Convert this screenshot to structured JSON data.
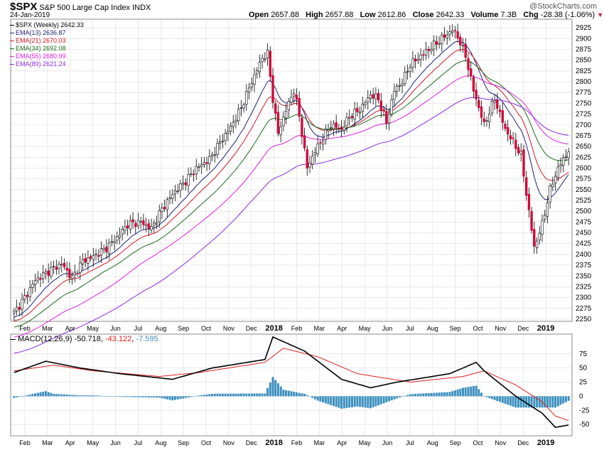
{
  "header": {
    "symbol": "$SPX",
    "name": "S&P 500 Large Cap Index",
    "exchange": "INDX",
    "date": "24-Jan-2019",
    "watermark": "@StockCharts.com",
    "open_label": "Open",
    "open": "2657.88",
    "high_label": "High",
    "high": "2657.88",
    "low_label": "Low",
    "low": "2612.86",
    "close_label": "Close",
    "close": "2642.33",
    "volume_label": "Volume",
    "volume": "7.3B",
    "chg_label": "Chg",
    "chg": "-28.38 (-1.06%)",
    "chg_arrow": "▼"
  },
  "overlay_legend": [
    {
      "label": "$SPX (Weekly) 2642.33",
      "color": "#000000"
    },
    {
      "label": "EMA(13) 2636.87",
      "color": "#1a237e"
    },
    {
      "label": "EMA(21) 2670.03",
      "color": "#d11a2a"
    },
    {
      "label": "EMA(34) 2692.08",
      "color": "#1e6b1e"
    },
    {
      "label": "EMA(55) 2680.99",
      "color": "#e020e0"
    },
    {
      "label": "EMA(89) 2621.24",
      "color": "#8a2be2"
    }
  ],
  "macd_legend": {
    "label": "MACD(12,26,9)",
    "macd": "-50.718",
    "signal": "-43.122",
    "hist": "-7.595"
  },
  "colors": {
    "up": "#ffffff",
    "down": "#d1093b",
    "grid": "#dcdcdc",
    "macd": "#000000",
    "signal": "#e02020",
    "hist": "#3d8fbf"
  },
  "x_axis_labels": [
    "Feb",
    "Mar",
    "Apr",
    "May",
    "Jun",
    "Jul",
    "Aug",
    "Sep",
    "Oct",
    "Nov",
    "Dec",
    "2018",
    "Feb",
    "Mar",
    "Apr",
    "May",
    "Jun",
    "Jul",
    "Aug",
    "Sep",
    "Oct",
    "Nov",
    "Dec",
    "2019"
  ],
  "chart_data": {
    "type": "candlestick",
    "title": "$SPX S&P 500 Large Cap Index INDX (Weekly)",
    "price_ticks": [
      2250,
      2275,
      2300,
      2325,
      2350,
      2375,
      2400,
      2425,
      2450,
      2475,
      2500,
      2525,
      2550,
      2575,
      2600,
      2625,
      2650,
      2675,
      2700,
      2725,
      2750,
      2775,
      2800,
      2825,
      2850,
      2875,
      2900,
      2925
    ],
    "ylim": [
      2245,
      2945
    ],
    "macd_ticks": [
      75,
      50,
      25,
      0,
      -25,
      -50
    ],
    "macd_ylim": [
      -70,
      110
    ],
    "anchors": [
      [
        0,
        2265
      ],
      [
        4,
        2300
      ],
      [
        8,
        2340
      ],
      [
        14,
        2365
      ],
      [
        18,
        2378
      ],
      [
        22,
        2345
      ],
      [
        26,
        2385
      ],
      [
        30,
        2395
      ],
      [
        35,
        2415
      ],
      [
        39,
        2440
      ],
      [
        43,
        2470
      ],
      [
        48,
        2475
      ],
      [
        52,
        2460
      ],
      [
        56,
        2505
      ],
      [
        60,
        2540
      ],
      [
        65,
        2570
      ],
      [
        69,
        2600
      ],
      [
        74,
        2620
      ],
      [
        78,
        2660
      ],
      [
        82,
        2695
      ],
      [
        86,
        2740
      ],
      [
        90,
        2800
      ],
      [
        94,
        2855
      ],
      [
        96,
        2865
      ],
      [
        98,
        2760
      ],
      [
        100,
        2680
      ],
      [
        103,
        2735
      ],
      [
        106,
        2780
      ],
      [
        108,
        2720
      ],
      [
        111,
        2600
      ],
      [
        114,
        2640
      ],
      [
        117,
        2670
      ],
      [
        120,
        2700
      ],
      [
        124,
        2690
      ],
      [
        127,
        2720
      ],
      [
        131,
        2735
      ],
      [
        135,
        2770
      ],
      [
        138,
        2760
      ],
      [
        141,
        2705
      ],
      [
        144,
        2780
      ],
      [
        147,
        2800
      ],
      [
        150,
        2840
      ],
      [
        154,
        2860
      ],
      [
        158,
        2880
      ],
      [
        162,
        2900
      ],
      [
        166,
        2920
      ],
      [
        168,
        2905
      ],
      [
        171,
        2860
      ],
      [
        174,
        2780
      ],
      [
        178,
        2700
      ],
      [
        182,
        2760
      ],
      [
        186,
        2690
      ],
      [
        190,
        2650
      ],
      [
        192,
        2630
      ],
      [
        194,
        2540
      ],
      [
        197,
        2416
      ],
      [
        200,
        2470
      ],
      [
        203,
        2550
      ],
      [
        206,
        2600
      ],
      [
        210,
        2640
      ]
    ],
    "macd_anchors": [
      [
        0,
        42
      ],
      [
        12,
        62
      ],
      [
        25,
        50
      ],
      [
        40,
        40
      ],
      [
        60,
        30
      ],
      [
        75,
        50
      ],
      [
        95,
        65
      ],
      [
        98,
        105
      ],
      [
        110,
        80
      ],
      [
        124,
        30
      ],
      [
        135,
        15
      ],
      [
        145,
        25
      ],
      [
        165,
        40
      ],
      [
        175,
        60
      ],
      [
        178,
        45
      ],
      [
        190,
        0
      ],
      [
        200,
        -30
      ],
      [
        205,
        -55
      ],
      [
        210,
        -51
      ]
    ],
    "signal_anchors": [
      [
        0,
        45
      ],
      [
        15,
        55
      ],
      [
        30,
        45
      ],
      [
        55,
        35
      ],
      [
        70,
        42
      ],
      [
        95,
        60
      ],
      [
        102,
        85
      ],
      [
        115,
        70
      ],
      [
        130,
        40
      ],
      [
        150,
        25
      ],
      [
        170,
        35
      ],
      [
        178,
        45
      ],
      [
        190,
        20
      ],
      [
        200,
        -10
      ],
      [
        205,
        -35
      ],
      [
        210,
        -43
      ]
    ]
  }
}
